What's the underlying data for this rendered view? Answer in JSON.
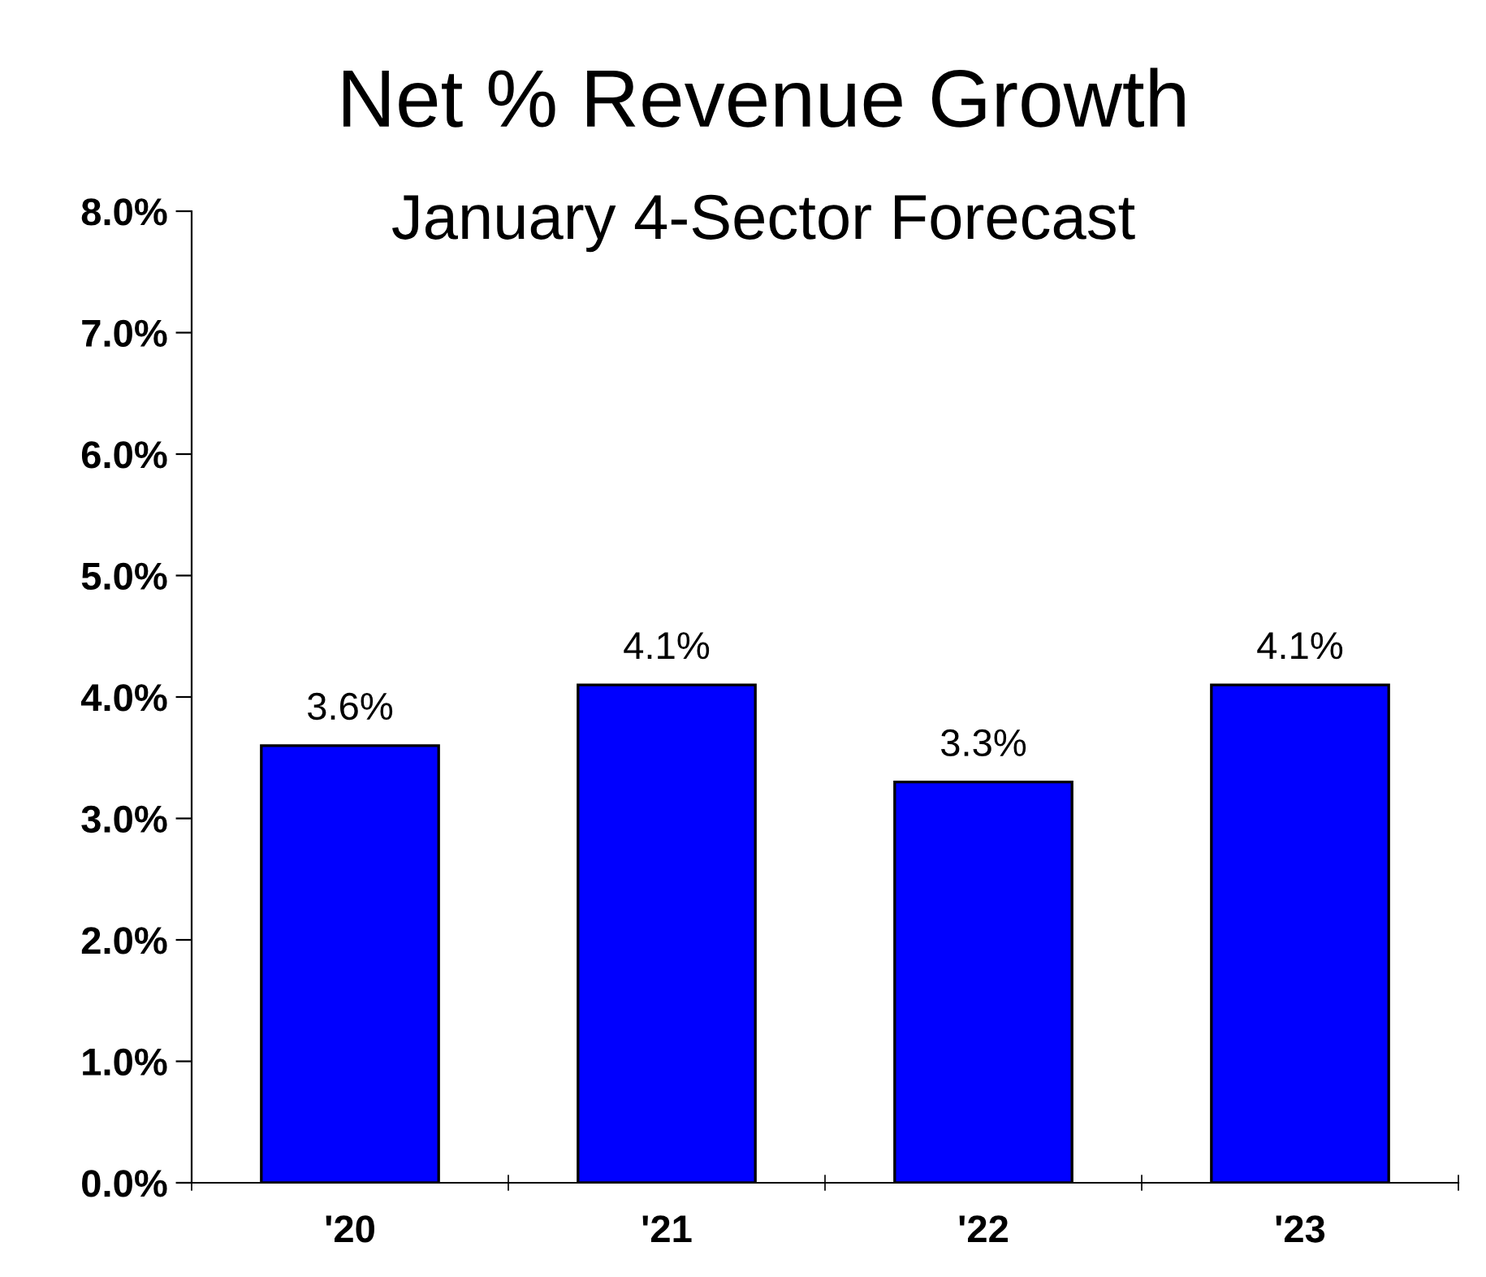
{
  "chart_data": {
    "type": "bar",
    "title": "Net % Revenue Growth",
    "subtitle": "January 4-Sector Forecast",
    "categories": [
      "'20",
      "'21",
      "'22",
      "'23"
    ],
    "values": [
      3.6,
      4.1,
      3.3,
      4.1
    ],
    "color": "#0000ff",
    "value_labels": [
      "3.6%",
      "4.1%",
      "3.3%",
      "4.1%"
    ],
    "ylim": [
      0,
      8
    ],
    "yticks": [
      {
        "value": 0,
        "label": "0.0%"
      },
      {
        "value": 1,
        "label": "1.0%"
      },
      {
        "value": 2,
        "label": "2.0%"
      },
      {
        "value": 3,
        "label": "3.0%"
      },
      {
        "value": 4,
        "label": "4.0%"
      },
      {
        "value": 5,
        "label": "5.0%"
      },
      {
        "value": 6,
        "label": "6.0%"
      },
      {
        "value": 7,
        "label": "7.0%"
      },
      {
        "value": 8,
        "label": "8.0%"
      }
    ],
    "grid": false,
    "legend": false
  }
}
